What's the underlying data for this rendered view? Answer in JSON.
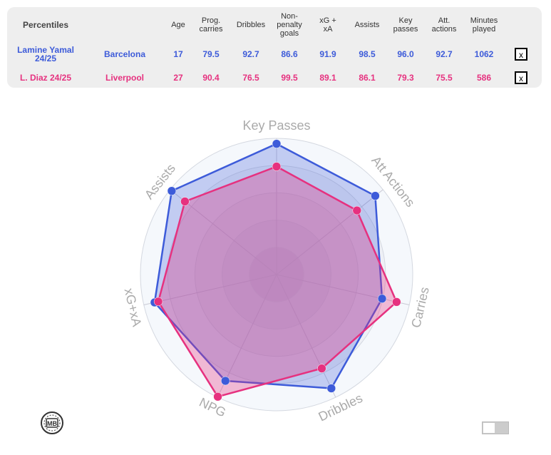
{
  "table": {
    "headers": [
      "Percentiles",
      "Age",
      "Prog. carries",
      "Dribbles",
      "Non- penalty goals",
      "xG + xA",
      "Assists",
      "Key passes",
      "Att. actions",
      "Minutes played"
    ],
    "header_lines": [
      [
        "Percentiles"
      ],
      [
        "Age"
      ],
      [
        "Prog.",
        "carries"
      ],
      [
        "Dribbles"
      ],
      [
        "Non-",
        "penalty",
        "goals"
      ],
      [
        "xG +",
        "xA"
      ],
      [
        "Assists"
      ],
      [
        "Key",
        "passes"
      ],
      [
        "Att.",
        "actions"
      ],
      [
        "Minutes",
        "played"
      ]
    ],
    "rows": [
      {
        "name_lines": [
          "Lamine Yamal",
          "24/25"
        ],
        "team": "Barcelona",
        "values": [
          "17",
          "79.5",
          "92.7",
          "86.6",
          "91.9",
          "98.5",
          "96.0",
          "92.7",
          "1062"
        ],
        "remove_label": "x",
        "color": "#3d5bd9"
      },
      {
        "name_lines": [
          "L. Diaz 24/25"
        ],
        "team": "Liverpool",
        "values": [
          "27",
          "90.4",
          "76.5",
          "99.5",
          "89.1",
          "86.1",
          "79.3",
          "75.5",
          "586"
        ],
        "remove_label": "x",
        "color": "#e6317f"
      }
    ]
  },
  "logo_text": "MB",
  "chart_data": {
    "type": "radar",
    "axes": [
      "Key Passes",
      "Att Actions",
      "Carries",
      "Dribbles",
      "NPG",
      "xG+xA",
      "Assists"
    ],
    "range": [
      0,
      100
    ],
    "grid_levels": [
      20,
      40,
      60,
      80,
      100
    ],
    "series": [
      {
        "name": "Lamine Yamal 24/25",
        "color": "#3d5bd9",
        "fill": "#3d5bd9",
        "values": [
          96.0,
          92.7,
          79.5,
          92.7,
          86.6,
          91.9,
          98.5
        ]
      },
      {
        "name": "L. Diaz 24/25",
        "color": "#e6317f",
        "fill": "#e6317f",
        "values": [
          79.3,
          75.5,
          90.4,
          76.5,
          99.5,
          89.1,
          86.1
        ]
      }
    ]
  }
}
